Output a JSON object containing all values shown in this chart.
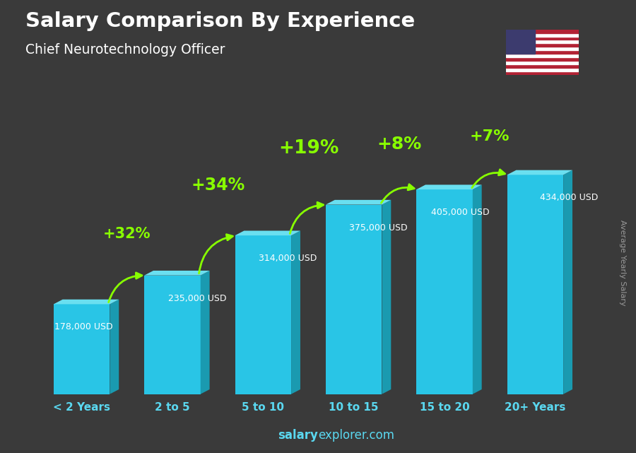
{
  "title": "Salary Comparison By Experience",
  "subtitle": "Chief Neurotechnology Officer",
  "categories": [
    "< 2 Years",
    "2 to 5",
    "5 to 10",
    "10 to 15",
    "15 to 20",
    "20+ Years"
  ],
  "values": [
    178000,
    235000,
    314000,
    375000,
    405000,
    434000
  ],
  "salary_labels": [
    "178,000 USD",
    "235,000 USD",
    "314,000 USD",
    "375,000 USD",
    "405,000 USD",
    "434,000 USD"
  ],
  "pct_labels": [
    "+32%",
    "+34%",
    "+19%",
    "+8%",
    "+7%"
  ],
  "bar_color_face": "#29c5e6",
  "bar_color_right": "#1a9ab0",
  "bar_color_top": "#6adff0",
  "pct_color": "#88ff00",
  "salary_label_color": "#ffffff",
  "title_color": "#ffffff",
  "subtitle_color": "#ffffff",
  "xlabel_color": "#5ad8f0",
  "ylabel": "Average Yearly Salary",
  "ylabel_color": "#999999",
  "footer_salary": "salary",
  "footer_rest": "explorer.com",
  "footer_color": "#5ad8f0",
  "bg_color": "#3a3a3a",
  "ylim": [
    0,
    520000
  ],
  "figsize": [
    9.0,
    6.41
  ]
}
